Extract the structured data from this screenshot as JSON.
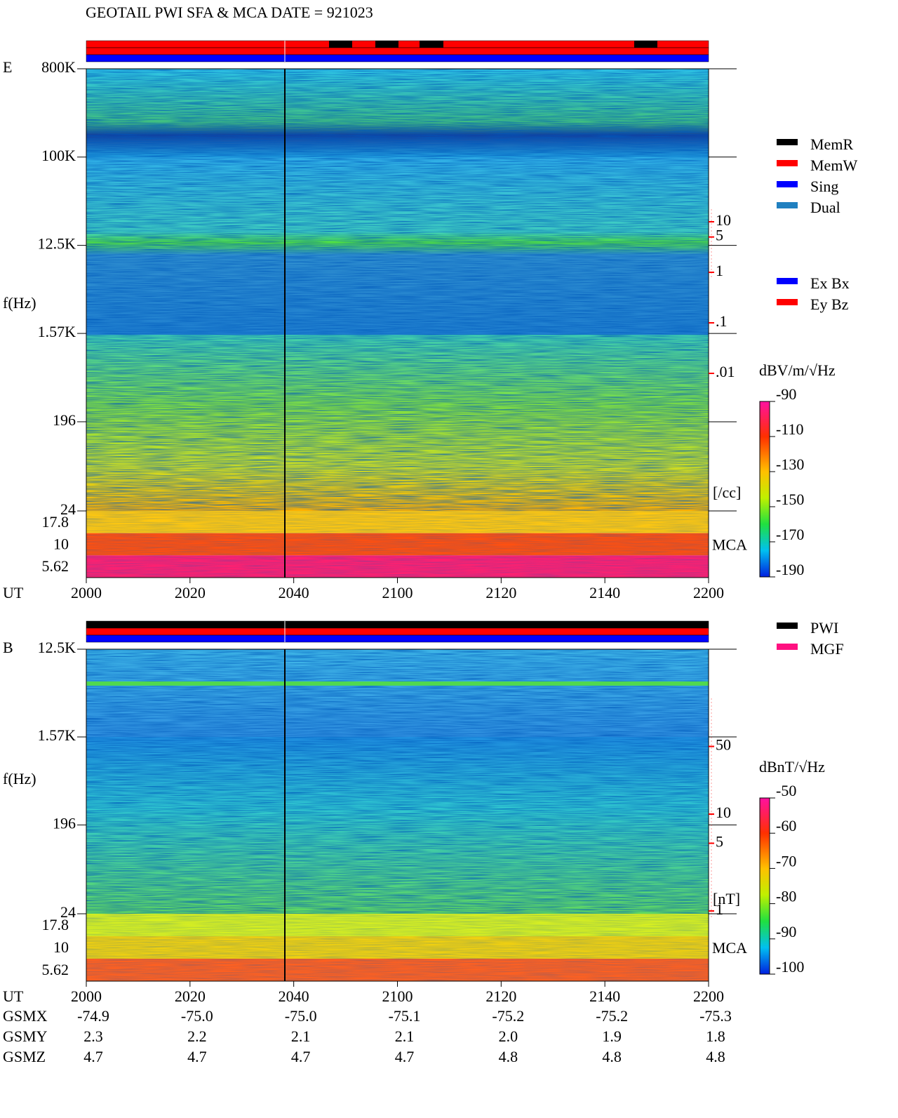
{
  "title": "GEOTAIL  PWI SFA & MCA   DATE = 921023",
  "chart_data": [
    {
      "type": "spectrogram",
      "panel": "E",
      "ylabel": "f(Hz)",
      "xlabel": "UT",
      "yscale": "log",
      "ylim": [
        24,
        800000
      ],
      "yticks": [
        24,
        196,
        {
          "value": 1570,
          "label": "1.57K"
        },
        {
          "value": 12500,
          "label": "12.5K"
        },
        {
          "value": 100000,
          "label": "100K"
        },
        {
          "value": 800000,
          "label": "800K"
        }
      ],
      "mca_channels": [
        17.8,
        10,
        5.62
      ],
      "mca_label": "MCA",
      "time_labels": [
        "2000",
        "2020",
        "2040",
        "2100",
        "2120",
        "2140",
        "2200"
      ],
      "colorbar": {
        "label": "dBV/m/√Hz",
        "lim": [
          -190,
          -90
        ],
        "ticks": [
          -90,
          -110,
          -130,
          -150,
          -170,
          -190
        ]
      },
      "right_scale": {
        "ticks": [
          10,
          5,
          1,
          {
            "value": 0.1,
            "label": ".1"
          },
          {
            "value": 0.01,
            "label": ".01"
          }
        ],
        "unit": "[/cc]",
        "color": "#ff0000"
      },
      "legends": [
        [
          {
            "name": "MemR",
            "color": "#000000"
          },
          {
            "name": "MemW",
            "color": "#ff0000"
          },
          {
            "name": "Sing",
            "color": "#0000ff"
          },
          {
            "name": "Dual",
            "color": "#2080c0"
          }
        ],
        [
          {
            "name": "Ex Bx",
            "color": "#0000ff"
          },
          {
            "name": "Ey Bz",
            "color": "#ff0000"
          }
        ]
      ]
    },
    {
      "type": "spectrogram",
      "panel": "B",
      "ylabel": "f(Hz)",
      "xlabel": "UT",
      "yscale": "log",
      "ylim": [
        24,
        12500
      ],
      "yticks": [
        24,
        196,
        {
          "value": 1570,
          "label": "1.57K"
        },
        {
          "value": 12500,
          "label": "12.5K"
        }
      ],
      "mca_channels": [
        17.8,
        10,
        5.62
      ],
      "mca_label": "MCA",
      "time_labels": [
        "2000",
        "2020",
        "2040",
        "2100",
        "2120",
        "2140",
        "2200"
      ],
      "colorbar": {
        "label": "dBnT/√Hz",
        "lim": [
          -100,
          -50
        ],
        "ticks": [
          -50,
          -60,
          -70,
          -80,
          -90,
          -100
        ]
      },
      "right_scale": {
        "ticks": [
          50,
          10,
          5,
          1
        ],
        "unit": "[nT]",
        "color": "#ff0000"
      },
      "legends": [
        [
          {
            "name": "PWI",
            "color": "#000000"
          },
          {
            "name": "MGF",
            "color": "#ff1080"
          }
        ]
      ]
    }
  ],
  "orbit": {
    "rows": [
      {
        "name": "GSMX",
        "values": [
          "-74.9",
          "-75.0",
          "-75.0",
          "-75.1",
          "-75.2",
          "-75.2",
          "-75.3"
        ]
      },
      {
        "name": "GSMY",
        "values": [
          "2.3",
          "2.2",
          "2.1",
          "2.1",
          "2.0",
          "1.9",
          "1.8"
        ]
      },
      {
        "name": "GSMZ",
        "values": [
          "4.7",
          "4.7",
          "4.7",
          "4.7",
          "4.8",
          "4.8",
          "4.8"
        ]
      }
    ]
  }
}
